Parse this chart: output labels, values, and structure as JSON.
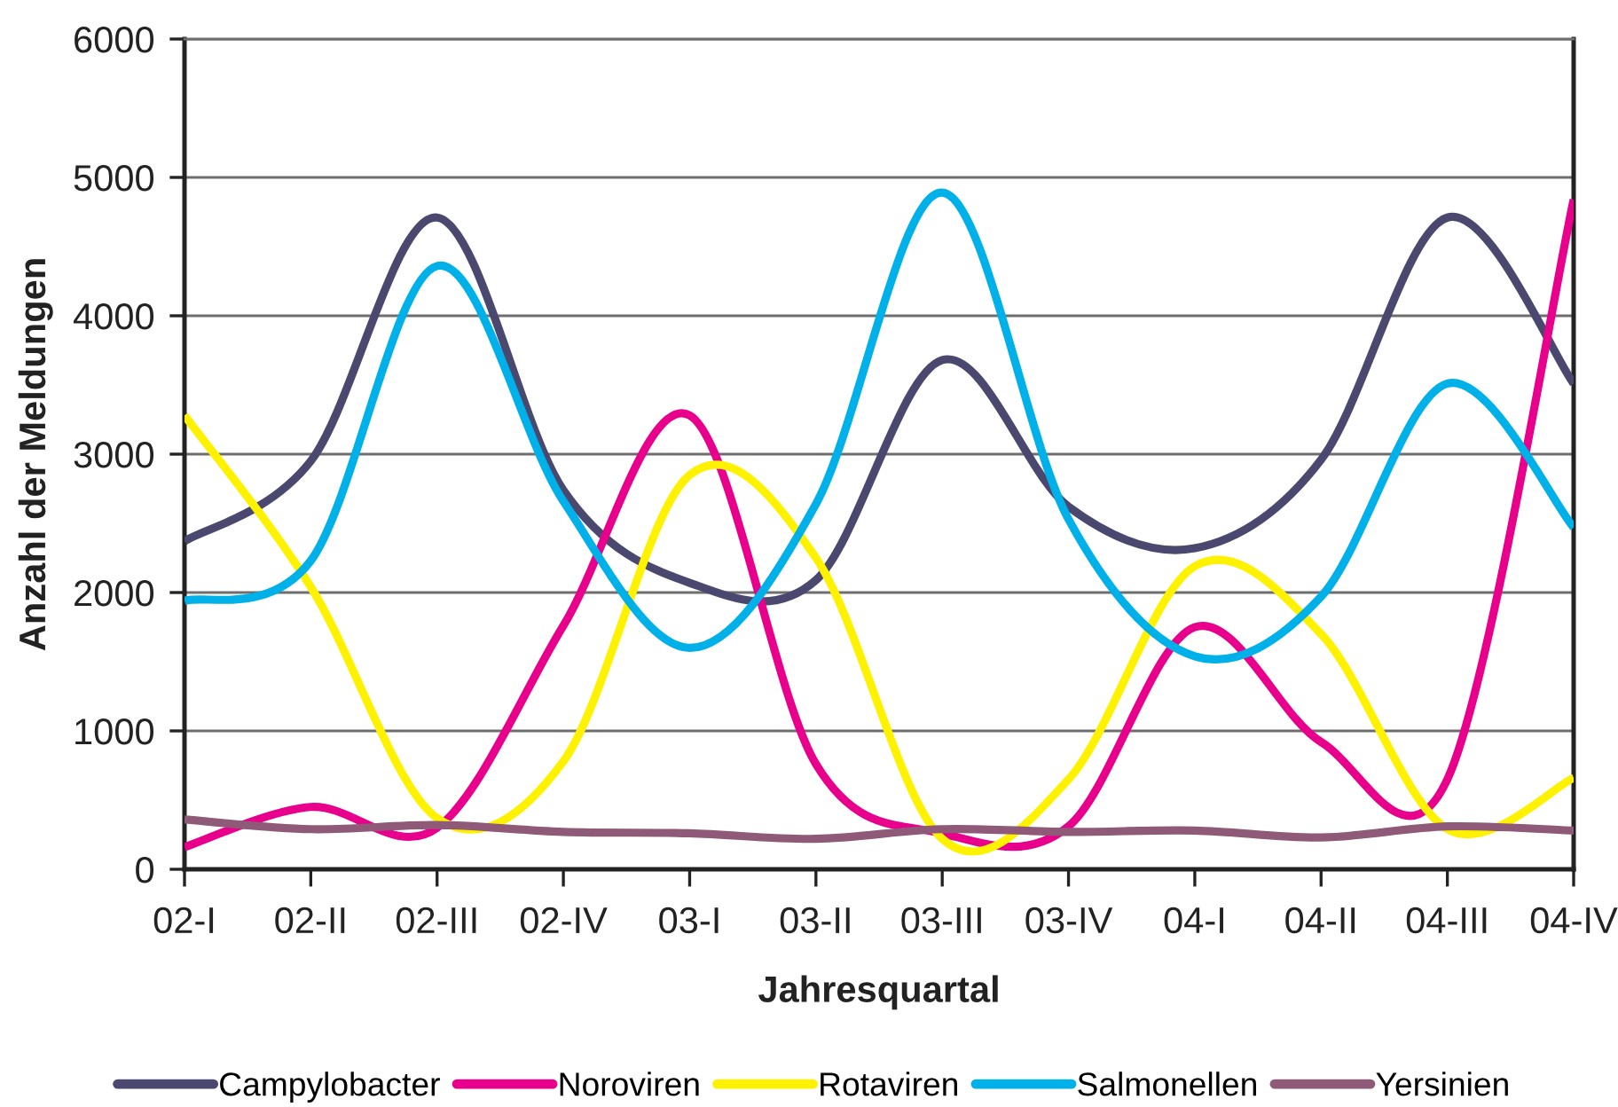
{
  "chart_data": {
    "type": "line",
    "xlabel": "Jahresquartal",
    "ylabel": "Anzahl der Meldungen",
    "categories": [
      "02-I",
      "02-II",
      "02-III",
      "02-IV",
      "03-I",
      "03-II",
      "03-III",
      "03-IV",
      "04-I",
      "04-II",
      "04-III",
      "04-IV"
    ],
    "series": [
      {
        "name": "Campylobacter",
        "color": "#4b4870",
        "values": [
          2370,
          2950,
          4710,
          2740,
          2070,
          2090,
          3680,
          2620,
          2320,
          2960,
          4710,
          3510
        ]
      },
      {
        "name": "Noroviren",
        "color": "#e8008c",
        "values": [
          160,
          450,
          300,
          1760,
          3280,
          760,
          260,
          310,
          1750,
          920,
          650,
          4840
        ]
      },
      {
        "name": "Rotaviren",
        "color": "#fff200",
        "values": [
          3280,
          2040,
          370,
          780,
          2850,
          2250,
          220,
          650,
          2190,
          1700,
          290,
          660
        ]
      },
      {
        "name": "Salmonellen",
        "color": "#00b0e8",
        "values": [
          1940,
          2230,
          4360,
          2660,
          1600,
          2640,
          4890,
          2530,
          1540,
          1970,
          3510,
          2470
        ]
      },
      {
        "name": "Yersinien",
        "color": "#8e5a78",
        "values": [
          360,
          290,
          320,
          270,
          260,
          220,
          290,
          270,
          280,
          230,
          310,
          280
        ]
      }
    ],
    "ylim": [
      0,
      6000
    ],
    "yticks": [
      0,
      1000,
      2000,
      3000,
      4000,
      5000,
      6000
    ],
    "grid": "y",
    "legend": "bottom"
  }
}
